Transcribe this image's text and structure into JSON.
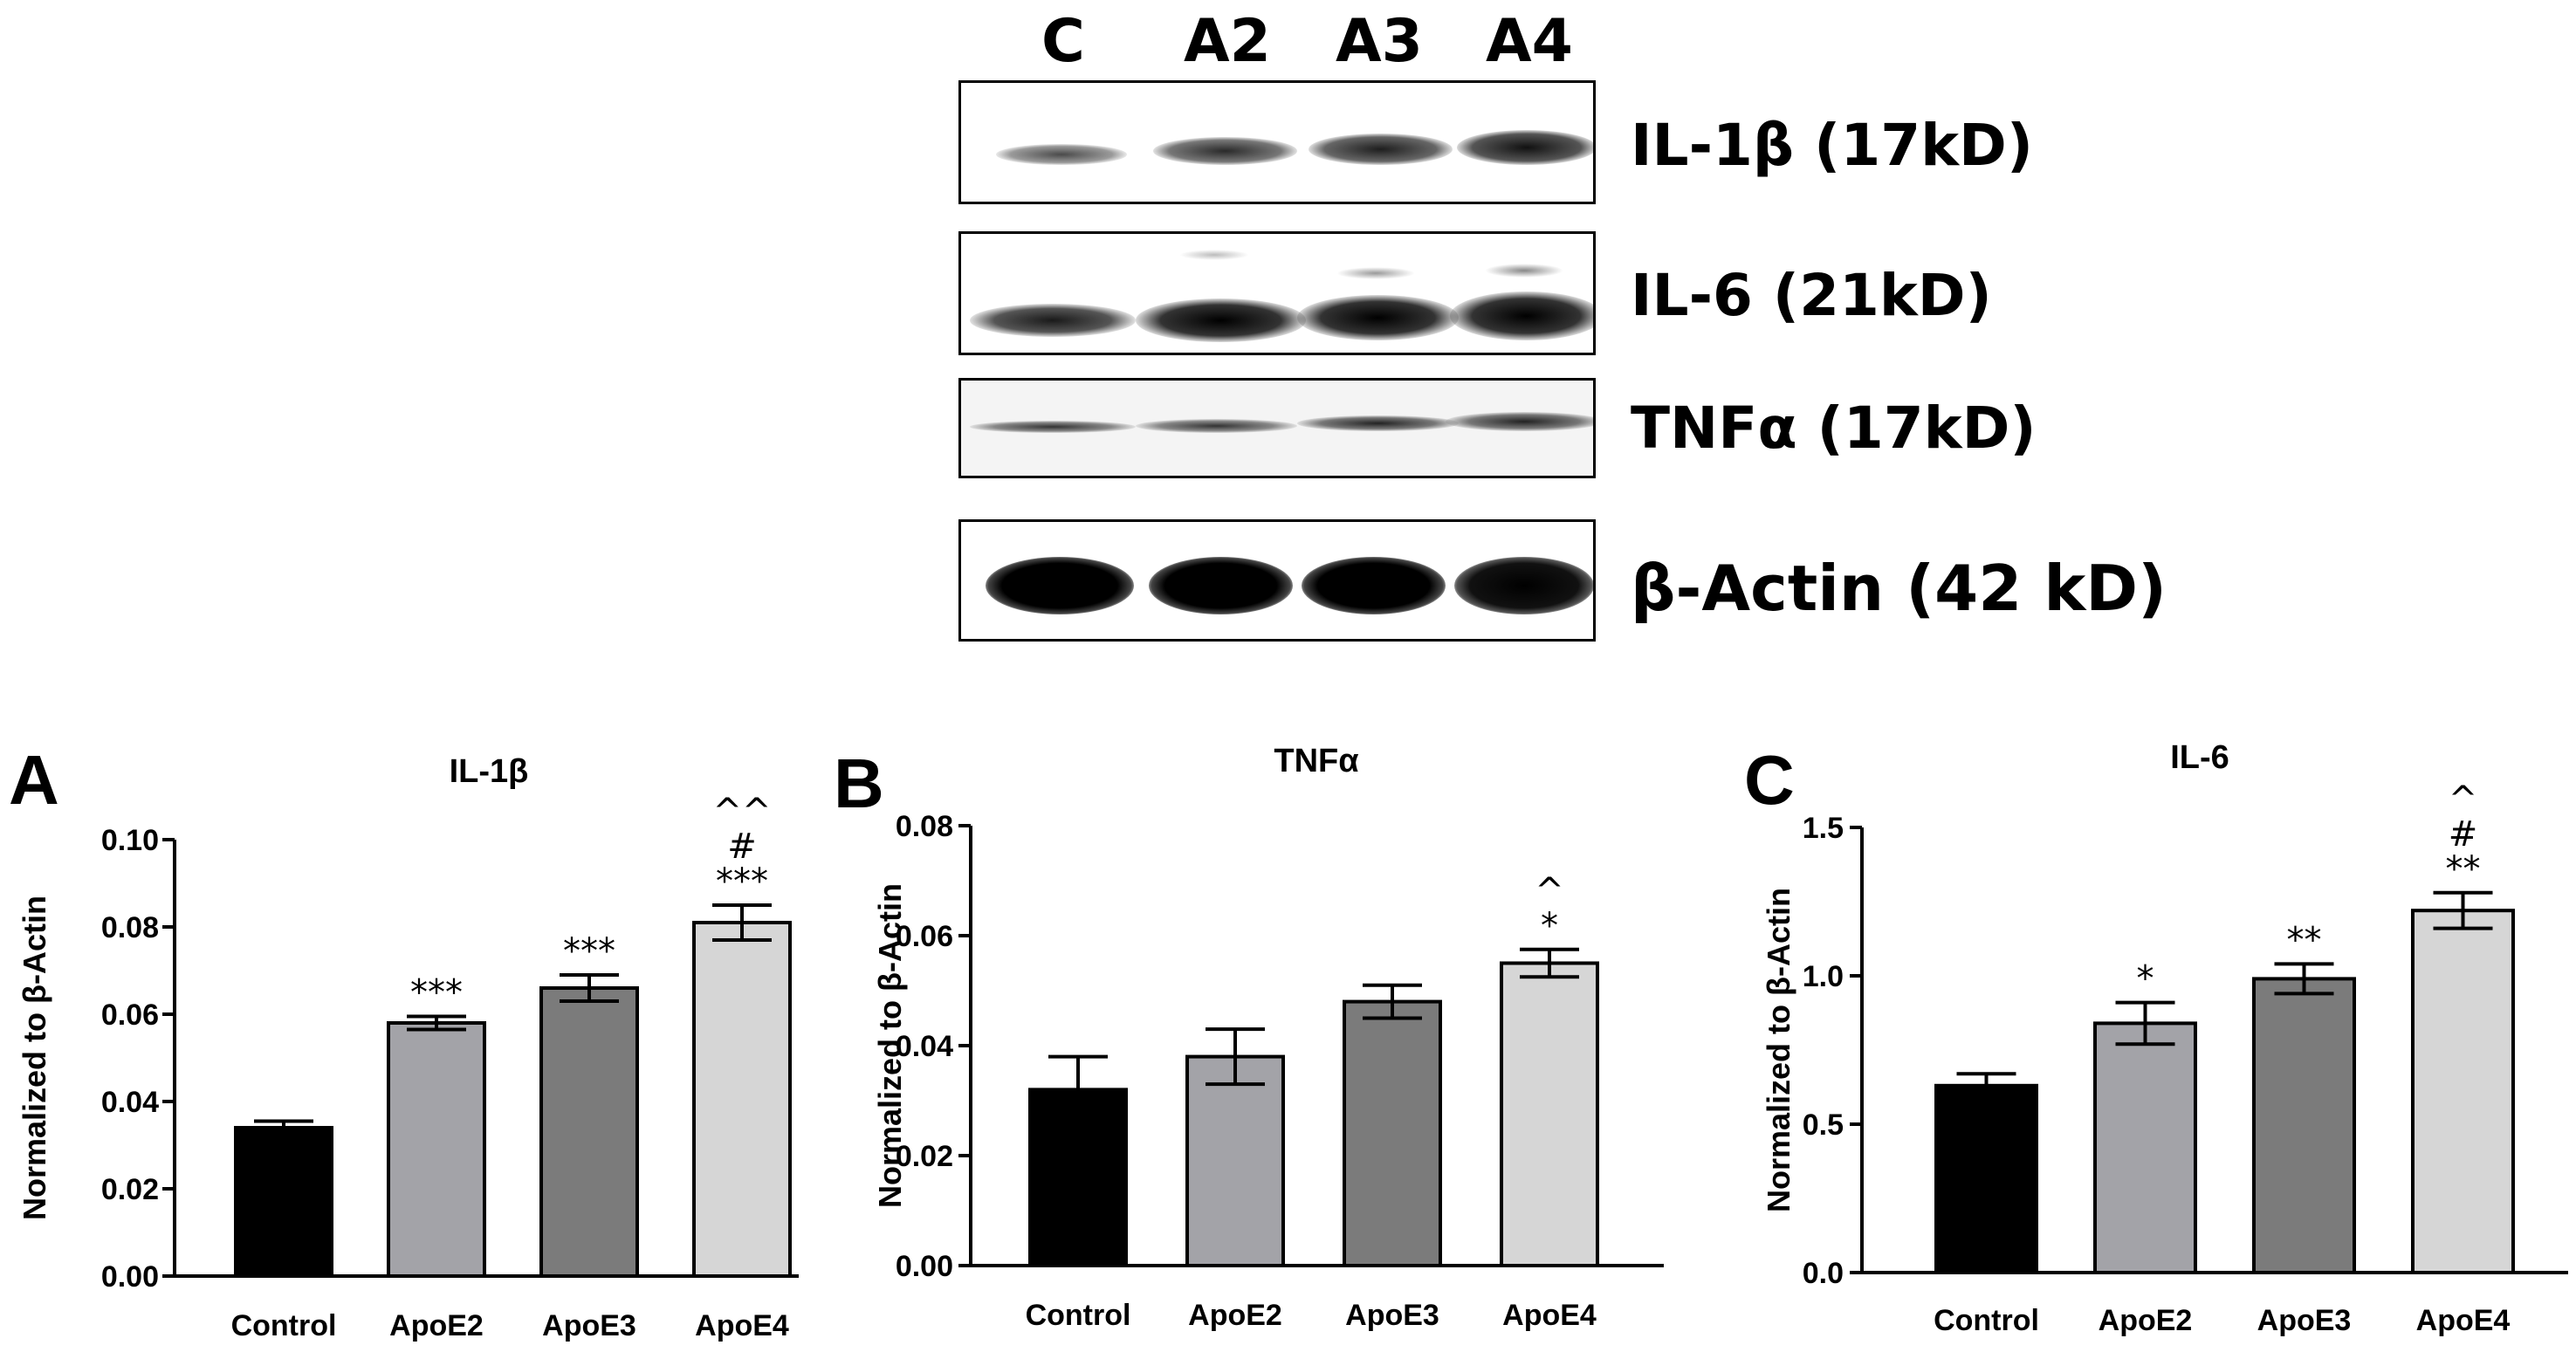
{
  "western_blot": {
    "lanes": [
      "C",
      "A2",
      "A3",
      "A4"
    ],
    "rows": [
      {
        "label": "IL-1β (17kD)"
      },
      {
        "label": "IL-6  (21kD)"
      },
      {
        "label": "TNFα  (17kD)"
      },
      {
        "label": "β-Actin (42 kD)"
      }
    ]
  },
  "chart_data": [
    {
      "type": "bar",
      "panel": "A",
      "title": "IL-1β",
      "ylabel": "Normalized to β-Actin",
      "ylim": [
        0,
        0.1
      ],
      "yticks": [
        "0.00",
        "0.02",
        "0.04",
        "0.06",
        "0.08",
        "0.10"
      ],
      "categories": [
        "Control",
        "ApoE2",
        "ApoE3",
        "ApoE4"
      ],
      "values": [
        0.034,
        0.058,
        0.066,
        0.081
      ],
      "errors": [
        0.0015,
        0.0015,
        0.003,
        0.004
      ],
      "annotations": [
        [],
        [
          "***"
        ],
        [
          "***"
        ],
        [
          "^^",
          "#",
          "***"
        ]
      ]
    },
    {
      "type": "bar",
      "panel": "B",
      "title": "TNFα",
      "ylabel": "Normalized to β-Actin",
      "ylim": [
        0,
        0.08
      ],
      "yticks": [
        "0.00",
        "0.02",
        "0.04",
        "0.06",
        "0.08"
      ],
      "categories": [
        "Control",
        "ApoE2",
        "ApoE3",
        "ApoE4"
      ],
      "values": [
        0.032,
        0.038,
        0.048,
        0.055
      ],
      "errors": [
        0.006,
        0.005,
        0.003,
        0.0025
      ],
      "annotations": [
        [],
        [],
        [],
        [
          "^",
          "*"
        ]
      ]
    },
    {
      "type": "bar",
      "panel": "C",
      "title": "IL-6",
      "ylabel": "Normalized to β-Actin",
      "ylim": [
        0,
        1.5
      ],
      "yticks": [
        "0.0",
        "0.5",
        "1.0",
        "1.5"
      ],
      "categories": [
        "Control",
        "ApoE2",
        "ApoE3",
        "ApoE4"
      ],
      "values": [
        0.63,
        0.84,
        0.99,
        1.22
      ],
      "errors": [
        0.04,
        0.07,
        0.05,
        0.06
      ],
      "annotations": [
        [],
        [
          "*"
        ],
        [
          "**"
        ],
        [
          "^",
          "#",
          "**"
        ]
      ]
    }
  ],
  "colors": {
    "bars": [
      "#000000",
      "#a3a3a8",
      "#7b7b7b",
      "#d6d6d6"
    ],
    "axis": "#000000"
  }
}
